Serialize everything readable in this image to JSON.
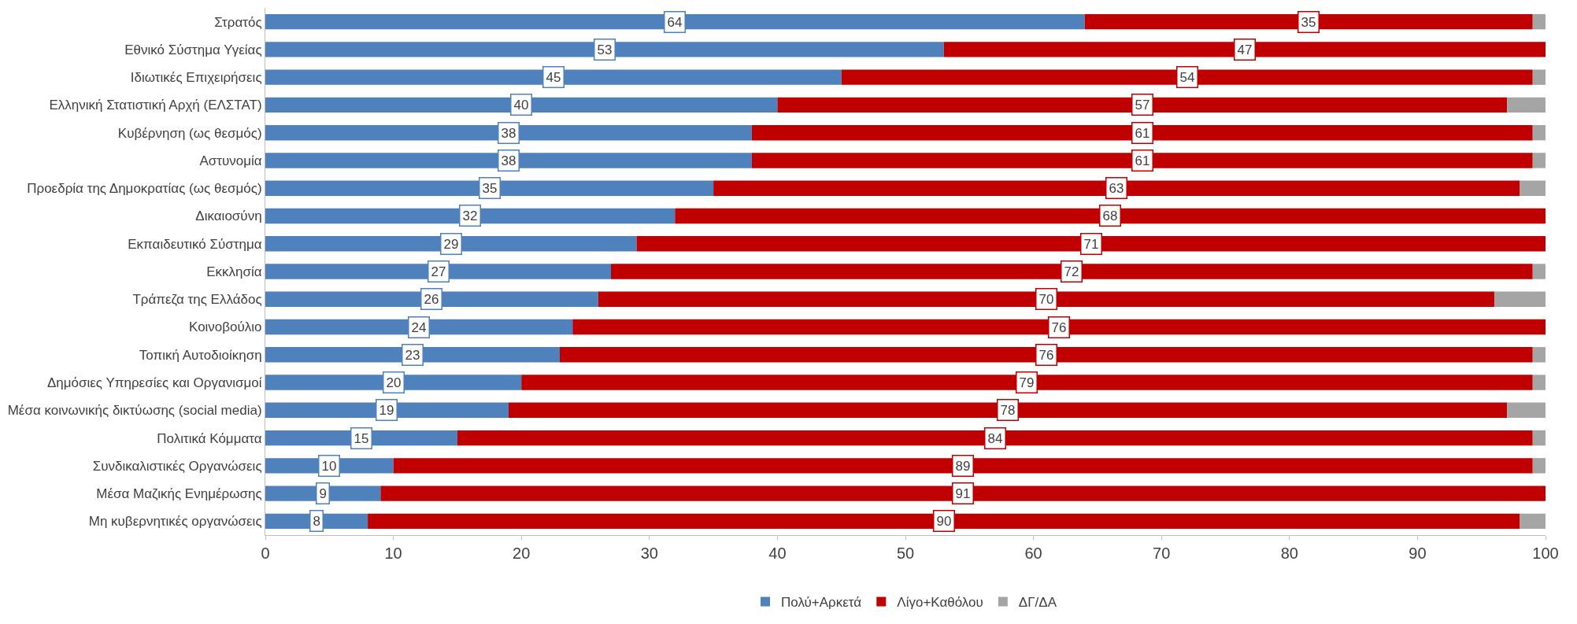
{
  "chart_data": {
    "type": "bar",
    "orientation": "horizontal",
    "stacked": true,
    "categories": [
      "Στρατός",
      "Εθνικό Σύστημα Υγείας",
      "Ιδιωτικές Επιχειρήσεις",
      "Ελληνική Στατιστική Αρχή (ΕΛΣΤΑΤ)",
      "Κυβέρνηση (ως θεσμός)",
      "Αστυνομία",
      "Προεδρία της Δημοκρατίας (ως θεσμός)",
      "Δικαιοσύνη",
      "Εκπαιδευτικό Σύστημα",
      "Εκκλησία",
      "Τράπεζα της Ελλάδος",
      "Κοινοβούλιο",
      "Τοπική Αυτοδιοίκηση",
      "Δημόσιες Υπηρεσίες και Οργανισμοί",
      "Μέσα κοινωνικής δικτύωσης (social media)",
      "Πολιτικά Κόμματα",
      "Συνδικαλιστικές Οργανώσεις",
      "Μέσα Μαζικής Ενημέρωσης",
      "Μη κυβερνητικές οργανώσεις"
    ],
    "series": [
      {
        "name": "Πολύ+Αρκετά",
        "color": "#4f81bd",
        "values": [
          64,
          53,
          45,
          40,
          38,
          38,
          35,
          32,
          29,
          27,
          26,
          24,
          23,
          20,
          19,
          15,
          10,
          9,
          8
        ],
        "value_labels": [
          "64",
          "53",
          "45",
          "40",
          "38",
          "38",
          "35",
          "32",
          "29",
          "27",
          "26",
          "24",
          "23",
          "20",
          "19",
          "15",
          "10",
          "9",
          "8"
        ]
      },
      {
        "name": "Λίγο+Καθόλου",
        "color": "#c00000",
        "values": [
          35,
          47,
          54,
          57,
          61,
          61,
          63,
          68,
          71,
          72,
          70,
          76,
          76,
          79,
          78,
          84,
          89,
          91,
          90
        ],
        "value_labels": [
          "35",
          "47",
          "54",
          "57",
          "61",
          "61",
          "63",
          "68",
          "71",
          "72",
          "70",
          "76",
          "76",
          "79",
          "78",
          "84",
          "89",
          "91",
          "90"
        ]
      },
      {
        "name": "ΔΓ/ΔΑ",
        "color": "#a5a5a5",
        "values": [
          1,
          0,
          1,
          3,
          1,
          1,
          2,
          0,
          0,
          1,
          4,
          0,
          1,
          1,
          3,
          1,
          1,
          0,
          2
        ]
      }
    ],
    "xlim": [
      0,
      100
    ],
    "xticks": [
      0,
      10,
      20,
      30,
      40,
      50,
      60,
      70,
      80,
      90,
      100
    ],
    "grid": false,
    "legend": "bottom"
  }
}
